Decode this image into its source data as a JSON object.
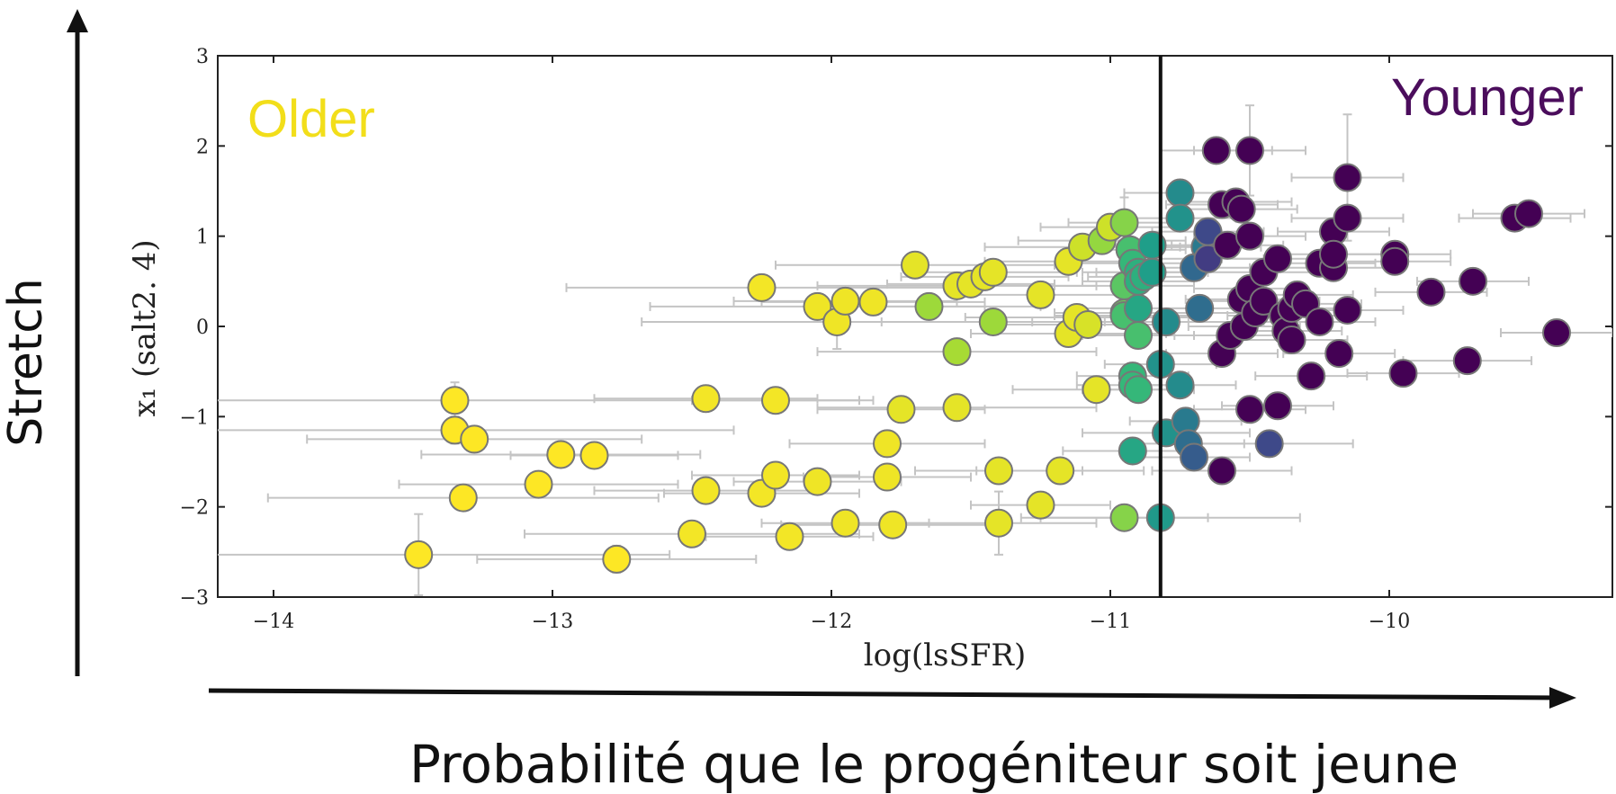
{
  "chart_data": {
    "type": "scatter",
    "title": "",
    "xlabel": "log(lsSFR)",
    "ylabel": "x₁ (salt2. 4)",
    "xlim": [
      -14.2,
      -9.2
    ],
    "ylim": [
      -3,
      3
    ],
    "xticks": [
      -14,
      -13,
      -12,
      -11,
      -10
    ],
    "yticks": [
      -3,
      -2,
      -1,
      0,
      1,
      2,
      3
    ],
    "xtick_labels": [
      "−14",
      "−13",
      "−12",
      "−11",
      "−10"
    ],
    "ytick_labels": [
      "−3",
      "−2",
      "−1",
      "0",
      "1",
      "2",
      "3"
    ],
    "threshold_x": -10.82,
    "grid": false,
    "legend": "none",
    "colormap": "viridis",
    "annotations": {
      "older": {
        "text": "Older",
        "color": "#f2de1a"
      },
      "younger": {
        "text": "Younger",
        "color": "#4b0d5c"
      }
    },
    "color_scale": {
      "low": "#fde725",
      "mid_low": "#a0da39",
      "mid": "#4ac16d",
      "mid_high": "#1fa187",
      "high_a": "#277f8e",
      "high_b": "#365c8d",
      "high_c": "#46327e",
      "top": "#440154"
    },
    "points": [
      {
        "x": -13.48,
        "y": -2.53,
        "xerr": 0.9,
        "yerr": 0.45,
        "c": 0.0
      },
      {
        "x": -13.35,
        "y": -0.82,
        "xerr": 1.5,
        "yerr": 0.2,
        "c": 0.0
      },
      {
        "x": -13.35,
        "y": -1.15,
        "xerr": 1.0,
        "yerr": 0.15,
        "c": 0.0
      },
      {
        "x": -13.32,
        "y": -1.9,
        "xerr": 0.7,
        "yerr": 0.1,
        "c": 0.0
      },
      {
        "x": -13.28,
        "y": -1.25,
        "xerr": 0.6,
        "yerr": 0.12,
        "c": 0.0
      },
      {
        "x": -13.05,
        "y": -1.75,
        "xerr": 0.5,
        "yerr": 0.1,
        "c": 0.0
      },
      {
        "x": -12.97,
        "y": -1.42,
        "xerr": 0.5,
        "yerr": 0.1,
        "c": 0.0
      },
      {
        "x": -12.85,
        "y": -1.43,
        "xerr": 0.3,
        "yerr": 0.08,
        "c": 0.0
      },
      {
        "x": -12.77,
        "y": -2.58,
        "xerr": 0.5,
        "yerr": 0.15,
        "c": 0.0
      },
      {
        "x": -12.5,
        "y": -2.3,
        "xerr": 0.6,
        "yerr": 0.1,
        "c": 0.02
      },
      {
        "x": -12.45,
        "y": -0.8,
        "xerr": 0.4,
        "yerr": 0.1,
        "c": 0.02
      },
      {
        "x": -12.45,
        "y": -1.82,
        "xerr": 0.4,
        "yerr": 0.1,
        "c": 0.02
      },
      {
        "x": -12.25,
        "y": 0.43,
        "xerr": 0.7,
        "yerr": 0.1,
        "c": 0.02
      },
      {
        "x": -12.25,
        "y": -1.85,
        "xerr": 0.35,
        "yerr": 0.1,
        "c": 0.02
      },
      {
        "x": -12.2,
        "y": -1.65,
        "xerr": 0.3,
        "yerr": 0.1,
        "c": 0.02
      },
      {
        "x": -12.2,
        "y": -0.82,
        "xerr": 0.3,
        "yerr": 0.1,
        "c": 0.02
      },
      {
        "x": -12.15,
        "y": -2.33,
        "xerr": 0.3,
        "yerr": 0.1,
        "c": 0.02
      },
      {
        "x": -12.05,
        "y": -1.72,
        "xerr": 0.3,
        "yerr": 0.1,
        "c": 0.03
      },
      {
        "x": -12.05,
        "y": 0.22,
        "xerr": 0.6,
        "yerr": 0.12,
        "c": 0.03
      },
      {
        "x": -11.98,
        "y": 0.05,
        "xerr": 0.7,
        "yerr": 0.3,
        "c": 0.03
      },
      {
        "x": -11.95,
        "y": 0.28,
        "xerr": 0.4,
        "yerr": 0.1,
        "c": 0.03
      },
      {
        "x": -11.95,
        "y": -2.18,
        "xerr": 0.3,
        "yerr": 0.1,
        "c": 0.03
      },
      {
        "x": -11.85,
        "y": 0.27,
        "xerr": 0.4,
        "yerr": 0.1,
        "c": 0.03
      },
      {
        "x": -11.8,
        "y": -1.3,
        "xerr": 0.35,
        "yerr": 0.1,
        "c": 0.03
      },
      {
        "x": -11.8,
        "y": -1.67,
        "xerr": 0.3,
        "yerr": 0.1,
        "c": 0.03
      },
      {
        "x": -11.78,
        "y": -2.2,
        "xerr": 0.4,
        "yerr": 0.1,
        "c": 0.03
      },
      {
        "x": -11.75,
        "y": -0.92,
        "xerr": 0.3,
        "yerr": 0.1,
        "c": 0.05
      },
      {
        "x": -11.7,
        "y": 0.68,
        "xerr": 0.5,
        "yerr": 0.12,
        "c": 0.05
      },
      {
        "x": -11.65,
        "y": 0.22,
        "xerr": 0.4,
        "yerr": 0.1,
        "c": 0.2
      },
      {
        "x": -11.55,
        "y": 0.45,
        "xerr": 0.5,
        "yerr": 0.1,
        "c": 0.05
      },
      {
        "x": -11.5,
        "y": 0.47,
        "xerr": 0.3,
        "yerr": 0.1,
        "c": 0.05
      },
      {
        "x": -11.55,
        "y": -0.28,
        "xerr": 0.5,
        "yerr": 0.1,
        "c": 0.18
      },
      {
        "x": -11.55,
        "y": -0.9,
        "xerr": 0.5,
        "yerr": 0.1,
        "c": 0.05
      },
      {
        "x": -11.45,
        "y": 0.55,
        "xerr": 0.3,
        "yerr": 0.1,
        "c": 0.05
      },
      {
        "x": -11.42,
        "y": 0.6,
        "xerr": 0.3,
        "yerr": 0.1,
        "c": 0.05
      },
      {
        "x": -11.42,
        "y": 0.05,
        "xerr": 0.4,
        "yerr": 0.1,
        "c": 0.2
      },
      {
        "x": -11.4,
        "y": -2.18,
        "xerr": 0.35,
        "yerr": 0.35,
        "c": 0.05
      },
      {
        "x": -11.4,
        "y": -1.6,
        "xerr": 0.3,
        "yerr": 0.1,
        "c": 0.05
      },
      {
        "x": -11.25,
        "y": -1.98,
        "xerr": 0.25,
        "yerr": 0.1,
        "c": 0.05
      },
      {
        "x": -11.25,
        "y": 0.35,
        "xerr": 0.3,
        "yerr": 0.1,
        "c": 0.05
      },
      {
        "x": -11.18,
        "y": -1.6,
        "xerr": 0.3,
        "yerr": 0.1,
        "c": 0.05
      },
      {
        "x": -11.15,
        "y": 0.72,
        "xerr": 0.3,
        "yerr": 0.1,
        "c": 0.05
      },
      {
        "x": -11.15,
        "y": -0.08,
        "xerr": 0.35,
        "yerr": 0.1,
        "c": 0.05
      },
      {
        "x": -11.12,
        "y": 0.1,
        "xerr": 0.4,
        "yerr": 0.1,
        "c": 0.05
      },
      {
        "x": -11.1,
        "y": 0.88,
        "xerr": 0.35,
        "yerr": 0.1,
        "c": 0.1
      },
      {
        "x": -11.08,
        "y": 0.02,
        "xerr": 0.3,
        "yerr": 0.1,
        "c": 0.08
      },
      {
        "x": -11.05,
        "y": -0.7,
        "xerr": 0.3,
        "yerr": 0.1,
        "c": 0.05
      },
      {
        "x": -11.03,
        "y": 0.95,
        "xerr": 0.3,
        "yerr": 0.12,
        "c": 0.22
      },
      {
        "x": -11.0,
        "y": 1.1,
        "xerr": 0.25,
        "yerr": 0.12,
        "c": 0.1
      },
      {
        "x": -10.95,
        "y": 1.15,
        "xerr": 0.2,
        "yerr": 0.28,
        "c": 0.25
      },
      {
        "x": -10.95,
        "y": 0.15,
        "xerr": 0.25,
        "yerr": 0.1,
        "c": 0.3
      },
      {
        "x": -10.95,
        "y": 0.45,
        "xerr": 0.25,
        "yerr": 0.1,
        "c": 0.35
      },
      {
        "x": -10.95,
        "y": 0.12,
        "xerr": 0.25,
        "yerr": 0.1,
        "c": 0.4
      },
      {
        "x": -10.95,
        "y": -2.12,
        "xerr": 0.3,
        "yerr": 0.1,
        "c": 0.25
      },
      {
        "x": -10.93,
        "y": 0.85,
        "xerr": 0.2,
        "yerr": 0.1,
        "c": 0.4
      },
      {
        "x": -10.92,
        "y": 0.7,
        "xerr": 0.2,
        "yerr": 0.1,
        "c": 0.45
      },
      {
        "x": -10.92,
        "y": -0.55,
        "xerr": 0.2,
        "yerr": 0.1,
        "c": 0.45
      },
      {
        "x": -10.92,
        "y": -0.65,
        "xerr": 0.2,
        "yerr": 0.1,
        "c": 0.45
      },
      {
        "x": -10.9,
        "y": 0.6,
        "xerr": 0.2,
        "yerr": 0.1,
        "c": 0.5
      },
      {
        "x": -10.9,
        "y": 0.5,
        "xerr": 0.2,
        "yerr": 0.1,
        "c": 0.5
      },
      {
        "x": -10.9,
        "y": 0.2,
        "xerr": 0.2,
        "yerr": 0.1,
        "c": 0.55
      },
      {
        "x": -10.9,
        "y": -0.1,
        "xerr": 0.2,
        "yerr": 0.1,
        "c": 0.4
      },
      {
        "x": -10.9,
        "y": -0.7,
        "xerr": 0.2,
        "yerr": 0.1,
        "c": 0.45
      },
      {
        "x": -10.88,
        "y": 0.55,
        "xerr": 0.2,
        "yerr": 0.1,
        "c": 0.5
      },
      {
        "x": -10.85,
        "y": 0.9,
        "xerr": 0.2,
        "yerr": 0.1,
        "c": 0.6
      },
      {
        "x": -10.85,
        "y": 0.6,
        "xerr": 0.2,
        "yerr": 0.1,
        "c": 0.6
      },
      {
        "x": -10.92,
        "y": -1.38,
        "xerr": 0.25,
        "yerr": 0.1,
        "c": 0.55
      },
      {
        "x": -10.82,
        "y": -2.12,
        "xerr": 0.5,
        "yerr": 0.1,
        "c": 0.62
      },
      {
        "x": -10.82,
        "y": -0.42,
        "xerr": 0.2,
        "yerr": 0.1,
        "c": 0.65
      },
      {
        "x": -10.8,
        "y": 0.05,
        "xerr": 0.25,
        "yerr": 0.1,
        "c": 0.68
      },
      {
        "x": -10.8,
        "y": -1.18,
        "xerr": 0.3,
        "yerr": 0.1,
        "c": 0.65
      },
      {
        "x": -10.75,
        "y": 1.48,
        "xerr": 0.2,
        "yerr": 0.1,
        "c": 0.68
      },
      {
        "x": -10.75,
        "y": 1.2,
        "xerr": 0.2,
        "yerr": 0.1,
        "c": 0.65
      },
      {
        "x": -10.75,
        "y": -0.65,
        "xerr": 0.2,
        "yerr": 0.1,
        "c": 0.68
      },
      {
        "x": -10.73,
        "y": -1.05,
        "xerr": 0.2,
        "yerr": 0.1,
        "c": 0.75
      },
      {
        "x": -10.72,
        "y": -1.3,
        "xerr": 0.2,
        "yerr": 0.1,
        "c": 0.8
      },
      {
        "x": -10.7,
        "y": 0.65,
        "xerr": 0.2,
        "yerr": 0.1,
        "c": 0.82
      },
      {
        "x": -10.7,
        "y": -1.45,
        "xerr": 0.2,
        "yerr": 0.1,
        "c": 0.85
      },
      {
        "x": -10.68,
        "y": 0.2,
        "xerr": 0.2,
        "yerr": 0.1,
        "c": 0.8
      },
      {
        "x": -10.66,
        "y": 0.88,
        "xerr": 0.2,
        "yerr": 0.1,
        "c": 0.75
      },
      {
        "x": -10.65,
        "y": 1.05,
        "xerr": 0.2,
        "yerr": 0.1,
        "c": 0.9
      },
      {
        "x": -10.65,
        "y": 0.75,
        "xerr": 0.2,
        "yerr": 0.1,
        "c": 0.92
      },
      {
        "x": -10.62,
        "y": 1.95,
        "xerr": 0.2,
        "yerr": 0.1,
        "c": 1.0
      },
      {
        "x": -10.6,
        "y": 1.35,
        "xerr": 0.2,
        "yerr": 0.1,
        "c": 1.0
      },
      {
        "x": -10.6,
        "y": -0.3,
        "xerr": 0.2,
        "yerr": 0.1,
        "c": 1.0
      },
      {
        "x": -10.6,
        "y": -1.6,
        "xerr": 0.25,
        "yerr": 0.1,
        "c": 1.0
      },
      {
        "x": -10.58,
        "y": 0.9,
        "xerr": 0.2,
        "yerr": 0.1,
        "c": 1.0
      },
      {
        "x": -10.57,
        "y": -0.1,
        "xerr": 0.2,
        "yerr": 0.1,
        "c": 1.0
      },
      {
        "x": -10.55,
        "y": 1.38,
        "xerr": 0.2,
        "yerr": 0.1,
        "c": 1.0
      },
      {
        "x": -10.53,
        "y": 1.3,
        "xerr": 0.2,
        "yerr": 0.1,
        "c": 1.0
      },
      {
        "x": -10.53,
        "y": 0.3,
        "xerr": 0.2,
        "yerr": 0.1,
        "c": 1.0
      },
      {
        "x": -10.52,
        "y": 0.0,
        "xerr": 0.2,
        "yerr": 0.1,
        "c": 1.0
      },
      {
        "x": -10.5,
        "y": 1.95,
        "xerr": 0.2,
        "yerr": 0.5,
        "c": 1.0
      },
      {
        "x": -10.5,
        "y": 1.0,
        "xerr": 0.2,
        "yerr": 0.1,
        "c": 1.0
      },
      {
        "x": -10.5,
        "y": 0.42,
        "xerr": 0.2,
        "yerr": 0.1,
        "c": 1.0
      },
      {
        "x": -10.5,
        "y": -0.92,
        "xerr": 0.2,
        "yerr": 0.1,
        "c": 1.0
      },
      {
        "x": -10.48,
        "y": 0.15,
        "xerr": 0.2,
        "yerr": 0.1,
        "c": 1.0
      },
      {
        "x": -10.45,
        "y": 0.6,
        "xerr": 0.2,
        "yerr": 0.1,
        "c": 1.0
      },
      {
        "x": -10.45,
        "y": 0.28,
        "xerr": 0.2,
        "yerr": 0.1,
        "c": 1.0
      },
      {
        "x": -10.43,
        "y": -1.3,
        "xerr": 0.3,
        "yerr": 0.1,
        "c": 0.9
      },
      {
        "x": -10.4,
        "y": -0.88,
        "xerr": 0.2,
        "yerr": 0.1,
        "c": 1.0
      },
      {
        "x": -10.4,
        "y": 0.75,
        "xerr": 0.2,
        "yerr": 0.1,
        "c": 1.0
      },
      {
        "x": -10.38,
        "y": 0.12,
        "xerr": 0.2,
        "yerr": 0.1,
        "c": 1.0
      },
      {
        "x": -10.37,
        "y": -0.05,
        "xerr": 0.2,
        "yerr": 0.1,
        "c": 1.0
      },
      {
        "x": -10.35,
        "y": 0.2,
        "xerr": 0.2,
        "yerr": 0.1,
        "c": 1.0
      },
      {
        "x": -10.35,
        "y": -0.15,
        "xerr": 0.2,
        "yerr": 0.1,
        "c": 1.0
      },
      {
        "x": -10.33,
        "y": 0.35,
        "xerr": 0.2,
        "yerr": 0.1,
        "c": 1.0
      },
      {
        "x": -10.3,
        "y": 0.25,
        "xerr": 0.2,
        "yerr": 0.1,
        "c": 1.0
      },
      {
        "x": -10.28,
        "y": -0.55,
        "xerr": 0.2,
        "yerr": 0.1,
        "c": 1.0
      },
      {
        "x": -10.25,
        "y": 0.7,
        "xerr": 0.2,
        "yerr": 0.1,
        "c": 1.0
      },
      {
        "x": -10.25,
        "y": 0.05,
        "xerr": 0.2,
        "yerr": 0.1,
        "c": 1.0
      },
      {
        "x": -10.2,
        "y": 1.05,
        "xerr": 0.2,
        "yerr": 0.1,
        "c": 1.0
      },
      {
        "x": -10.2,
        "y": 0.65,
        "xerr": 0.2,
        "yerr": 0.1,
        "c": 1.0
      },
      {
        "x": -10.2,
        "y": 0.8,
        "xerr": 0.2,
        "yerr": 0.1,
        "c": 1.0
      },
      {
        "x": -10.18,
        "y": -0.3,
        "xerr": 0.2,
        "yerr": 0.1,
        "c": 1.0
      },
      {
        "x": -10.15,
        "y": 1.65,
        "xerr": 0.2,
        "yerr": 0.7,
        "c": 1.0
      },
      {
        "x": -10.15,
        "y": 1.2,
        "xerr": 0.2,
        "yerr": 0.1,
        "c": 1.0
      },
      {
        "x": -10.15,
        "y": 0.18,
        "xerr": 0.2,
        "yerr": 0.1,
        "c": 1.0
      },
      {
        "x": -9.98,
        "y": 0.8,
        "xerr": 0.2,
        "yerr": 0.1,
        "c": 1.0
      },
      {
        "x": -9.98,
        "y": 0.72,
        "xerr": 0.2,
        "yerr": 0.1,
        "c": 1.0
      },
      {
        "x": -9.95,
        "y": -0.52,
        "xerr": 0.2,
        "yerr": 0.1,
        "c": 1.0
      },
      {
        "x": -9.85,
        "y": 0.38,
        "xerr": 0.2,
        "yerr": 0.1,
        "c": 1.0
      },
      {
        "x": -9.72,
        "y": -0.38,
        "xerr": 0.23,
        "yerr": 0.1,
        "c": 1.0
      },
      {
        "x": -9.7,
        "y": 0.5,
        "xerr": 0.2,
        "yerr": 0.1,
        "c": 1.0
      },
      {
        "x": -9.55,
        "y": 1.2,
        "xerr": 0.2,
        "yerr": 0.1,
        "c": 1.0
      },
      {
        "x": -9.5,
        "y": 1.25,
        "xerr": 0.2,
        "yerr": 0.1,
        "c": 1.0
      },
      {
        "x": -9.4,
        "y": -0.07,
        "xerr": 0.2,
        "yerr": 0.1,
        "c": 1.0
      }
    ]
  },
  "figure": {
    "left_axis_label": "Stretch",
    "bottom_axis_label": "Probabilité que le progéniteur soit jeune",
    "arrow_color": "#111111"
  }
}
